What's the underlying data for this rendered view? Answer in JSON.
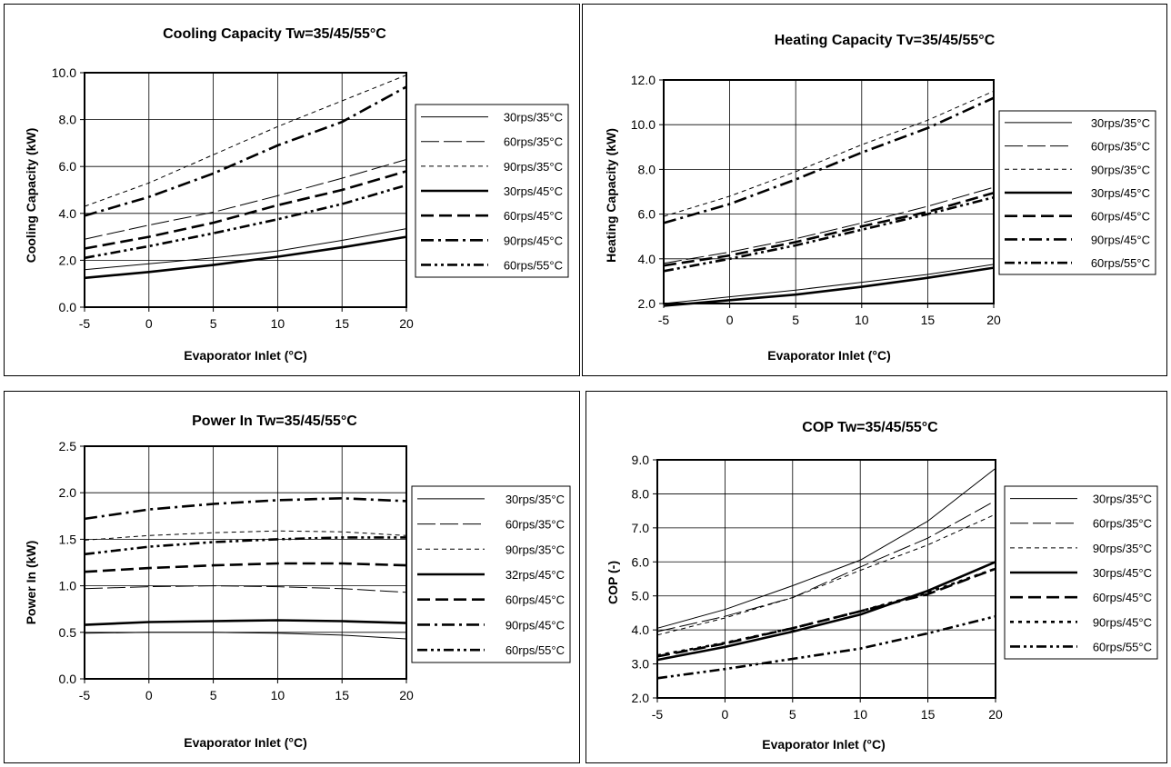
{
  "chart_data": [
    {
      "type": "line",
      "title": "Cooling Capacity Tw=35/45/55°C",
      "xlabel": "Evaporator Inlet (°C)",
      "ylabel": "Cooling Capacity (kW)",
      "xlim": [
        -5,
        20
      ],
      "ylim": [
        0,
        10
      ],
      "xticks": [
        "-5",
        "0",
        "5",
        "10",
        "15",
        "20"
      ],
      "yticks": [
        "0.0",
        "2.0",
        "4.0",
        "6.0",
        "8.0",
        "10.0"
      ],
      "x": [
        -5,
        0,
        5,
        10,
        15,
        20
      ],
      "grid": true,
      "legend_position": "right",
      "series": [
        {
          "name": "30rps/35°C",
          "style": "thin-solid",
          "values": [
            1.6,
            1.85,
            2.1,
            2.4,
            2.85,
            3.35
          ]
        },
        {
          "name": "60rps/35°C",
          "style": "thin-dash",
          "values": [
            2.9,
            3.5,
            4.05,
            4.75,
            5.5,
            6.3
          ]
        },
        {
          "name": "90rps/35°C",
          "style": "thin-dot",
          "values": [
            4.3,
            5.3,
            6.5,
            7.7,
            8.8,
            9.9
          ]
        },
        {
          "name": "30rps/45°C",
          "style": "thick-solid",
          "values": [
            1.25,
            1.5,
            1.8,
            2.15,
            2.55,
            3.0
          ]
        },
        {
          "name": "60rps/45°C",
          "style": "thick-dash",
          "values": [
            2.5,
            3.0,
            3.6,
            4.35,
            5.0,
            5.8
          ]
        },
        {
          "name": "90rps/45°C",
          "style": "thick-dashdot",
          "values": [
            3.9,
            4.7,
            5.7,
            6.9,
            7.9,
            9.4
          ]
        },
        {
          "name": "60rps/55°C",
          "style": "thick-dashdotdot",
          "values": [
            2.1,
            2.6,
            3.15,
            3.75,
            4.4,
            5.2
          ]
        }
      ]
    },
    {
      "type": "line",
      "title": "Heating Capacity Tv=35/45/55°C",
      "xlabel": "Evaporator Inlet (°C)",
      "ylabel": "Heating Capacity (kW)",
      "xlim": [
        -5,
        20
      ],
      "ylim": [
        2,
        12
      ],
      "xticks": [
        "-5",
        "0",
        "5",
        "10",
        "15",
        "20"
      ],
      "yticks": [
        "2.0",
        "4.0",
        "6.0",
        "8.0",
        "10.0",
        "12.0"
      ],
      "x": [
        -5,
        0,
        5,
        10,
        15,
        20
      ],
      "grid": true,
      "legend_position": "right",
      "series": [
        {
          "name": "30rps/35°C",
          "style": "thin-solid",
          "values": [
            2.0,
            2.3,
            2.6,
            2.95,
            3.3,
            3.75
          ]
        },
        {
          "name": "60rps/35°C",
          "style": "thin-dash",
          "values": [
            3.8,
            4.3,
            4.9,
            5.6,
            6.35,
            7.2
          ]
        },
        {
          "name": "90rps/35°C",
          "style": "thin-dot",
          "values": [
            5.9,
            6.8,
            7.9,
            9.1,
            10.2,
            11.5
          ]
        },
        {
          "name": "30rps/45°C",
          "style": "thick-solid",
          "values": [
            1.9,
            2.15,
            2.4,
            2.75,
            3.15,
            3.6
          ]
        },
        {
          "name": "60rps/45°C",
          "style": "thick-dash",
          "values": [
            3.7,
            4.15,
            4.75,
            5.45,
            6.1,
            6.95
          ]
        },
        {
          "name": "90rps/45°C",
          "style": "thick-dashdot",
          "values": [
            5.6,
            6.45,
            7.55,
            8.75,
            9.85,
            11.2
          ]
        },
        {
          "name": "60rps/55°C",
          "style": "thick-dashdotdot",
          "values": [
            3.45,
            4.0,
            4.6,
            5.3,
            6.0,
            6.75
          ]
        }
      ]
    },
    {
      "type": "line",
      "title": "Power In Tw=35/45/55°C",
      "xlabel": "Evaporator Inlet (°C)",
      "ylabel": "Power In (kW)",
      "xlim": [
        -5,
        20
      ],
      "ylim": [
        0,
        2.5
      ],
      "xticks": [
        "-5",
        "0",
        "5",
        "10",
        "15",
        "20"
      ],
      "yticks": [
        "0.0",
        "0.5",
        "1.0",
        "1.5",
        "2.0",
        "2.5"
      ],
      "x": [
        -5,
        0,
        5,
        10,
        15,
        20
      ],
      "grid": true,
      "legend_position": "right",
      "series": [
        {
          "name": "30rps/35°C",
          "style": "thin-solid",
          "values": [
            0.49,
            0.5,
            0.5,
            0.49,
            0.47,
            0.43
          ]
        },
        {
          "name": "60rps/35°C",
          "style": "thin-dash",
          "values": [
            0.97,
            0.99,
            1.0,
            0.99,
            0.97,
            0.93
          ]
        },
        {
          "name": "90rps/35°C",
          "style": "thin-dot",
          "values": [
            1.49,
            1.54,
            1.57,
            1.59,
            1.58,
            1.54
          ]
        },
        {
          "name": "32rps/45°C",
          "style": "thick-solid",
          "values": [
            0.58,
            0.61,
            0.62,
            0.63,
            0.62,
            0.6
          ]
        },
        {
          "name": "60rps/45°C",
          "style": "thick-dash",
          "values": [
            1.15,
            1.19,
            1.22,
            1.24,
            1.24,
            1.22
          ]
        },
        {
          "name": "90rps/45°C",
          "style": "thick-dashdot",
          "values": [
            1.72,
            1.82,
            1.88,
            1.92,
            1.94,
            1.91
          ]
        },
        {
          "name": "60rps/55°C",
          "style": "thick-dashdotdot",
          "values": [
            1.34,
            1.42,
            1.47,
            1.5,
            1.52,
            1.52
          ]
        }
      ]
    },
    {
      "type": "line",
      "title": "COP Tw=35/45/55°C",
      "xlabel": "Evaporator Inlet (°C)",
      "ylabel": "COP (-)",
      "xlim": [
        -5,
        20
      ],
      "ylim": [
        2,
        9
      ],
      "xticks": [
        "-5",
        "0",
        "5",
        "10",
        "15",
        "20"
      ],
      "yticks": [
        "2.0",
        "3.0",
        "4.0",
        "5.0",
        "6.0",
        "7.0",
        "8.0",
        "9.0"
      ],
      "x": [
        -5,
        0,
        5,
        10,
        15,
        20
      ],
      "grid": true,
      "legend_position": "right",
      "series": [
        {
          "name": "30rps/35°C",
          "style": "thin-solid",
          "values": [
            4.05,
            4.6,
            5.3,
            6.05,
            7.2,
            8.75
          ]
        },
        {
          "name": "60rps/35°C",
          "style": "thin-dash",
          "values": [
            3.95,
            4.4,
            4.95,
            5.85,
            6.7,
            7.8
          ]
        },
        {
          "name": "90rps/35°C",
          "style": "thin-dot",
          "values": [
            3.85,
            4.35,
            4.95,
            5.75,
            6.5,
            7.4
          ]
        },
        {
          "name": "30rps/45°C",
          "style": "thick-solid",
          "values": [
            3.12,
            3.5,
            3.95,
            4.45,
            5.15,
            6.0
          ]
        },
        {
          "name": "60rps/45°C",
          "style": "thick-dash",
          "values": [
            3.22,
            3.6,
            4.05,
            4.55,
            5.05,
            5.8
          ]
        },
        {
          "name": "90rps/45°C",
          "style": "thick-dot",
          "values": [
            3.25,
            3.62,
            4.05,
            4.55,
            5.1,
            5.8
          ]
        },
        {
          "name": "60rps/55°C",
          "style": "thick-dashdotdot",
          "values": [
            2.58,
            2.85,
            3.15,
            3.45,
            3.9,
            4.4
          ]
        }
      ]
    }
  ]
}
